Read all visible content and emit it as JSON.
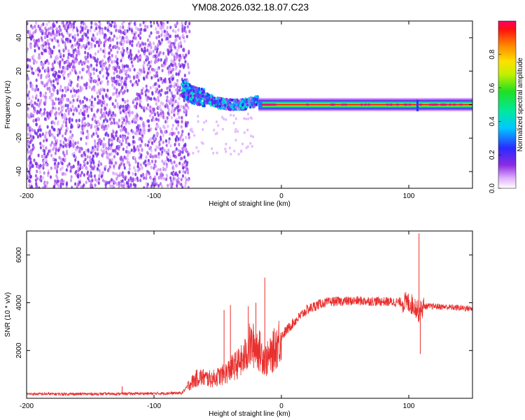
{
  "title": "YM08.2026.032.18.07.C23",
  "chart_data": [
    {
      "type": "heatmap",
      "name": "spectrogram",
      "xlabel": "Height of straight line (km)",
      "ylabel": "Frequency (Hz)",
      "xlim": [
        -200,
        150
      ],
      "ylim": [
        -50,
        50
      ],
      "xticks": [
        -200,
        -100,
        0,
        100
      ],
      "yticks": [
        -40,
        -20,
        0,
        20,
        40
      ],
      "colorbar": {
        "label": "Normalized spectral amplitude",
        "range": [
          0,
          1
        ],
        "ticks": [
          0.0,
          0.2,
          0.4,
          0.6,
          0.8
        ]
      },
      "regions": [
        {
          "x_range": [
            -200,
            -72
          ],
          "description": "noise",
          "amplitude": 0.15
        },
        {
          "x_range": [
            -78,
            -18
          ],
          "center_hz": [
            10,
            0
          ],
          "amplitude": 0.4
        },
        {
          "x_range": [
            -18,
            150
          ],
          "center_hz": 0,
          "amplitude": 0.95
        }
      ],
      "ridge": [
        [
          -78,
          10
        ],
        [
          -70,
          6
        ],
        [
          -60,
          4
        ],
        [
          -50,
          1
        ],
        [
          -40,
          0
        ],
        [
          -30,
          0
        ],
        [
          -20,
          2
        ],
        [
          -15,
          3
        ],
        [
          -10,
          1
        ],
        [
          0,
          0
        ],
        [
          50,
          0
        ],
        [
          100,
          0
        ],
        [
          108,
          -1
        ],
        [
          150,
          0
        ]
      ]
    },
    {
      "type": "line",
      "name": "snr",
      "xlabel": "Height of straight line (km)",
      "ylabel": "SNR (10 * v/v)",
      "xlim": [
        -200,
        150
      ],
      "ylim": [
        0,
        7000
      ],
      "xticks": [
        -200,
        -100,
        0,
        100
      ],
      "yticks": [
        2000,
        4000,
        6000
      ],
      "color": "#e8302e",
      "envelope": [
        [
          -200,
          180
        ],
        [
          -150,
          180
        ],
        [
          -100,
          200
        ],
        [
          -78,
          220
        ],
        [
          -72,
          600
        ],
        [
          -65,
          900
        ],
        [
          -55,
          800
        ],
        [
          -45,
          1000
        ],
        [
          -38,
          1300
        ],
        [
          -30,
          1600
        ],
        [
          -25,
          2200
        ],
        [
          -20,
          2200
        ],
        [
          -12,
          1600
        ],
        [
          -8,
          1800
        ],
        [
          0,
          2600
        ],
        [
          10,
          3200
        ],
        [
          20,
          3700
        ],
        [
          30,
          3950
        ],
        [
          40,
          4050
        ],
        [
          60,
          4080
        ],
        [
          80,
          4050
        ],
        [
          100,
          4000
        ],
        [
          105,
          3850
        ],
        [
          108,
          3600
        ],
        [
          112,
          3850
        ],
        [
          120,
          3850
        ],
        [
          150,
          3750
        ]
      ],
      "spikes": [
        [
          -125,
          500
        ],
        [
          -45,
          3700
        ],
        [
          -40,
          3900
        ],
        [
          -26,
          3850
        ],
        [
          -20,
          4000
        ],
        [
          -13,
          5050
        ],
        [
          108,
          6900
        ],
        [
          109,
          1850
        ]
      ]
    }
  ]
}
